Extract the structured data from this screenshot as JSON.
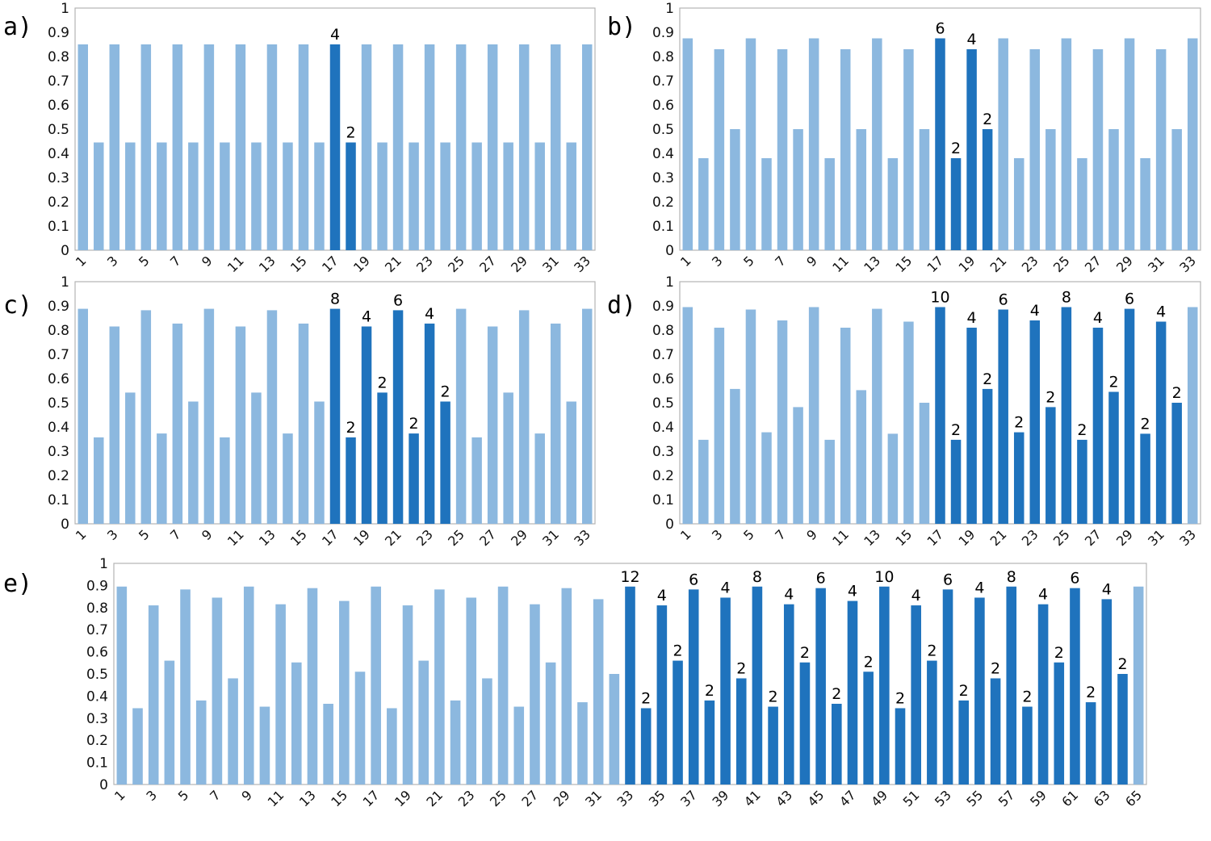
{
  "colors": {
    "light": "#8cb8df",
    "dark": "#1f73bd",
    "axis": "#b3b3b3"
  },
  "chart_data": [
    {
      "type": "bar",
      "panel_label": "a)",
      "categories": [
        1,
        2,
        3,
        4,
        5,
        6,
        7,
        8,
        9,
        10,
        11,
        12,
        13,
        14,
        15,
        16,
        17,
        18,
        19,
        20,
        21,
        22,
        23,
        24,
        25,
        26,
        27,
        28,
        29,
        30,
        31,
        32,
        33
      ],
      "x_tick_labels": [
        "1",
        "3",
        "5",
        "7",
        "9",
        "11",
        "13",
        "15",
        "17",
        "19",
        "21",
        "23",
        "25",
        "27",
        "29",
        "31",
        "33"
      ],
      "y_tick_labels": [
        "0",
        "0.1",
        "0.2",
        "0.3",
        "0.4",
        "0.5",
        "0.6",
        "0.7",
        "0.8",
        "0.9",
        "1"
      ],
      "ylim": [
        0,
        1
      ],
      "values": [
        0.85,
        0.445,
        0.85,
        0.445,
        0.85,
        0.445,
        0.85,
        0.445,
        0.85,
        0.445,
        0.85,
        0.445,
        0.85,
        0.445,
        0.85,
        0.445,
        0.85,
        0.445,
        0.85,
        0.445,
        0.85,
        0.445,
        0.85,
        0.445,
        0.85,
        0.445,
        0.85,
        0.445,
        0.85,
        0.445,
        0.85,
        0.445,
        0.85
      ],
      "highlight_range": [
        17,
        18
      ],
      "annotations": [
        {
          "x": 17,
          "text": "4"
        },
        {
          "x": 18,
          "text": "2"
        }
      ]
    },
    {
      "type": "bar",
      "panel_label": "b)",
      "categories": [
        1,
        2,
        3,
        4,
        5,
        6,
        7,
        8,
        9,
        10,
        11,
        12,
        13,
        14,
        15,
        16,
        17,
        18,
        19,
        20,
        21,
        22,
        23,
        24,
        25,
        26,
        27,
        28,
        29,
        30,
        31,
        32,
        33
      ],
      "x_tick_labels": [
        "1",
        "3",
        "5",
        "7",
        "9",
        "11",
        "13",
        "15",
        "17",
        "19",
        "21",
        "23",
        "25",
        "27",
        "29",
        "31",
        "33"
      ],
      "y_tick_labels": [
        "0",
        "0.1",
        "0.2",
        "0.3",
        "0.4",
        "0.5",
        "0.6",
        "0.7",
        "0.8",
        "0.9",
        "1"
      ],
      "ylim": [
        0,
        1
      ],
      "values": [
        0.875,
        0.38,
        0.83,
        0.5,
        0.875,
        0.38,
        0.83,
        0.5,
        0.875,
        0.38,
        0.83,
        0.5,
        0.875,
        0.38,
        0.83,
        0.5,
        0.875,
        0.38,
        0.83,
        0.5,
        0.875,
        0.38,
        0.83,
        0.5,
        0.875,
        0.38,
        0.83,
        0.5,
        0.875,
        0.38,
        0.83,
        0.5,
        0.875
      ],
      "highlight_range": [
        17,
        20
      ],
      "annotations": [
        {
          "x": 17,
          "text": "6"
        },
        {
          "x": 18,
          "text": "2"
        },
        {
          "x": 19,
          "text": "4"
        },
        {
          "x": 20,
          "text": "2"
        }
      ]
    },
    {
      "type": "bar",
      "panel_label": "c)",
      "categories": [
        1,
        2,
        3,
        4,
        5,
        6,
        7,
        8,
        9,
        10,
        11,
        12,
        13,
        14,
        15,
        16,
        17,
        18,
        19,
        20,
        21,
        22,
        23,
        24,
        25,
        26,
        27,
        28,
        29,
        30,
        31,
        32,
        33
      ],
      "x_tick_labels": [
        "1",
        "3",
        "5",
        "7",
        "9",
        "11",
        "13",
        "15",
        "17",
        "19",
        "21",
        "23",
        "25",
        "27",
        "29",
        "31",
        "33"
      ],
      "y_tick_labels": [
        "0",
        "0.1",
        "0.2",
        "0.3",
        "0.4",
        "0.5",
        "0.6",
        "0.7",
        "0.8",
        "0.9",
        "1"
      ],
      "ylim": [
        0,
        1
      ],
      "values": [
        0.888,
        0.357,
        0.815,
        0.542,
        0.882,
        0.373,
        0.827,
        0.505,
        0.888,
        0.357,
        0.815,
        0.542,
        0.882,
        0.373,
        0.827,
        0.505,
        0.888,
        0.357,
        0.815,
        0.542,
        0.882,
        0.373,
        0.827,
        0.505,
        0.888,
        0.357,
        0.815,
        0.542,
        0.882,
        0.373,
        0.827,
        0.505,
        0.888
      ],
      "highlight_range": [
        17,
        24
      ],
      "annotations": [
        {
          "x": 17,
          "text": "8"
        },
        {
          "x": 18,
          "text": "2"
        },
        {
          "x": 19,
          "text": "4"
        },
        {
          "x": 20,
          "text": "2"
        },
        {
          "x": 21,
          "text": "6"
        },
        {
          "x": 22,
          "text": "2"
        },
        {
          "x": 23,
          "text": "4"
        },
        {
          "x": 24,
          "text": "2"
        }
      ]
    },
    {
      "type": "bar",
      "panel_label": "d)",
      "categories": [
        1,
        2,
        3,
        4,
        5,
        6,
        7,
        8,
        9,
        10,
        11,
        12,
        13,
        14,
        15,
        16,
        17,
        18,
        19,
        20,
        21,
        22,
        23,
        24,
        25,
        26,
        27,
        28,
        29,
        30,
        31,
        32,
        33
      ],
      "x_tick_labels": [
        "1",
        "3",
        "5",
        "7",
        "9",
        "11",
        "13",
        "15",
        "17",
        "19",
        "21",
        "23",
        "25",
        "27",
        "29",
        "31",
        "33"
      ],
      "y_tick_labels": [
        "0",
        "0.1",
        "0.2",
        "0.3",
        "0.4",
        "0.5",
        "0.6",
        "0.7",
        "0.8",
        "0.9",
        "1"
      ],
      "ylim": [
        0,
        1
      ],
      "values": [
        0.895,
        0.347,
        0.81,
        0.557,
        0.885,
        0.378,
        0.84,
        0.482,
        0.895,
        0.347,
        0.81,
        0.552,
        0.888,
        0.372,
        0.835,
        0.5,
        0.895,
        0.347,
        0.81,
        0.557,
        0.885,
        0.378,
        0.84,
        0.482,
        0.895,
        0.347,
        0.81,
        0.545,
        0.888,
        0.372,
        0.835,
        0.5,
        0.895
      ],
      "highlight_range": [
        17,
        32
      ],
      "annotations": [
        {
          "x": 17,
          "text": "10"
        },
        {
          "x": 18,
          "text": "2"
        },
        {
          "x": 19,
          "text": "4"
        },
        {
          "x": 20,
          "text": "2"
        },
        {
          "x": 21,
          "text": "6"
        },
        {
          "x": 22,
          "text": "2"
        },
        {
          "x": 23,
          "text": "4"
        },
        {
          "x": 24,
          "text": "2"
        },
        {
          "x": 25,
          "text": "8"
        },
        {
          "x": 26,
          "text": "2"
        },
        {
          "x": 27,
          "text": "4"
        },
        {
          "x": 28,
          "text": "2"
        },
        {
          "x": 29,
          "text": "6"
        },
        {
          "x": 30,
          "text": "2"
        },
        {
          "x": 31,
          "text": "4"
        },
        {
          "x": 32,
          "text": "2"
        }
      ]
    },
    {
      "type": "bar",
      "panel_label": "e)",
      "categories": [
        1,
        2,
        3,
        4,
        5,
        6,
        7,
        8,
        9,
        10,
        11,
        12,
        13,
        14,
        15,
        16,
        17,
        18,
        19,
        20,
        21,
        22,
        23,
        24,
        25,
        26,
        27,
        28,
        29,
        30,
        31,
        32,
        33,
        34,
        35,
        36,
        37,
        38,
        39,
        40,
        41,
        42,
        43,
        44,
        45,
        46,
        47,
        48,
        49,
        50,
        51,
        52,
        53,
        54,
        55,
        56,
        57,
        58,
        59,
        60,
        61,
        62,
        63,
        64,
        65
      ],
      "x_tick_labels": [
        "1",
        "3",
        "5",
        "7",
        "9",
        "11",
        "13",
        "15",
        "17",
        "19",
        "21",
        "23",
        "25",
        "27",
        "29",
        "31",
        "33",
        "35",
        "37",
        "39",
        "41",
        "43",
        "45",
        "47",
        "49",
        "51",
        "53",
        "55",
        "57",
        "59",
        "61",
        "63",
        "65"
      ],
      "y_tick_labels": [
        "0",
        "0.1",
        "0.2",
        "0.3",
        "0.4",
        "0.5",
        "0.6",
        "0.7",
        "0.8",
        "0.9",
        "1"
      ],
      "ylim": [
        0,
        1
      ],
      "values": [
        0.895,
        0.345,
        0.81,
        0.56,
        0.882,
        0.38,
        0.845,
        0.48,
        0.895,
        0.352,
        0.815,
        0.552,
        0.888,
        0.365,
        0.83,
        0.51,
        0.895,
        0.345,
        0.81,
        0.56,
        0.882,
        0.38,
        0.845,
        0.48,
        0.895,
        0.352,
        0.815,
        0.552,
        0.888,
        0.372,
        0.838,
        0.5,
        0.895,
        0.345,
        0.81,
        0.56,
        0.882,
        0.38,
        0.845,
        0.48,
        0.895,
        0.352,
        0.815,
        0.552,
        0.888,
        0.365,
        0.83,
        0.51,
        0.895,
        0.345,
        0.81,
        0.56,
        0.882,
        0.38,
        0.845,
        0.48,
        0.895,
        0.352,
        0.815,
        0.552,
        0.888,
        0.372,
        0.838,
        0.5,
        0.895
      ],
      "highlight_range": [
        33,
        64
      ],
      "annotations": [
        {
          "x": 33,
          "text": "12"
        },
        {
          "x": 34,
          "text": "2"
        },
        {
          "x": 35,
          "text": "4"
        },
        {
          "x": 36,
          "text": "2"
        },
        {
          "x": 37,
          "text": "6"
        },
        {
          "x": 38,
          "text": "2"
        },
        {
          "x": 39,
          "text": "4"
        },
        {
          "x": 40,
          "text": "2"
        },
        {
          "x": 41,
          "text": "8"
        },
        {
          "x": 42,
          "text": "2"
        },
        {
          "x": 43,
          "text": "4"
        },
        {
          "x": 44,
          "text": "2"
        },
        {
          "x": 45,
          "text": "6"
        },
        {
          "x": 46,
          "text": "2"
        },
        {
          "x": 47,
          "text": "4"
        },
        {
          "x": 48,
          "text": "2"
        },
        {
          "x": 49,
          "text": "10"
        },
        {
          "x": 50,
          "text": "2"
        },
        {
          "x": 51,
          "text": "4"
        },
        {
          "x": 52,
          "text": "2"
        },
        {
          "x": 53,
          "text": "6"
        },
        {
          "x": 54,
          "text": "2"
        },
        {
          "x": 55,
          "text": "4"
        },
        {
          "x": 56,
          "text": "2"
        },
        {
          "x": 57,
          "text": "8"
        },
        {
          "x": 58,
          "text": "2"
        },
        {
          "x": 59,
          "text": "4"
        },
        {
          "x": 60,
          "text": "2"
        },
        {
          "x": 61,
          "text": "6"
        },
        {
          "x": 62,
          "text": "2"
        },
        {
          "x": 63,
          "text": "4"
        },
        {
          "x": 64,
          "text": "2"
        }
      ]
    }
  ]
}
